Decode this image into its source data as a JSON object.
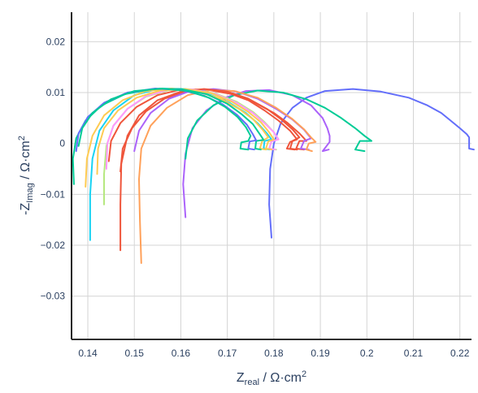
{
  "chart_data": {
    "type": "line",
    "title": "",
    "xlabel": {
      "base": "Z",
      "sub": "real",
      "unit": " / Ω·cm",
      "sup": "2"
    },
    "ylabel": {
      "base": "-Z",
      "sub": "Imag",
      "unit": " / Ω·cm",
      "sup": "2"
    },
    "xlim": [
      0.1365,
      0.2225
    ],
    "ylim": [
      -0.0385,
      0.0258
    ],
    "xticks": [
      0.14,
      0.15,
      0.16,
      0.17,
      0.18,
      0.19,
      0.2,
      0.21,
      0.22
    ],
    "xtick_labels": [
      "0.14",
      "0.15",
      "0.16",
      "0.17",
      "0.18",
      "0.19",
      "0.2",
      "0.21",
      "0.22"
    ],
    "yticks": [
      0.02,
      0.01,
      0,
      -0.01,
      -0.02,
      -0.03
    ],
    "ytick_labels": [
      "0.02",
      "0.01",
      "0",
      "−0.01",
      "−0.02",
      "−0.03"
    ],
    "grid": true,
    "legend": "none",
    "series": [
      {
        "color": "#636efa",
        "points": [
          [
            0.1795,
            -0.0185
          ],
          [
            0.179,
            -0.012
          ],
          [
            0.1792,
            -0.005
          ],
          [
            0.18,
            0.0
          ],
          [
            0.1815,
            0.004
          ],
          [
            0.184,
            0.007
          ],
          [
            0.187,
            0.009
          ],
          [
            0.191,
            0.0103
          ],
          [
            0.197,
            0.0107
          ],
          [
            0.203,
            0.0102
          ],
          [
            0.209,
            0.009
          ],
          [
            0.213,
            0.0075
          ],
          [
            0.216,
            0.006
          ],
          [
            0.218,
            0.0045
          ],
          [
            0.22,
            0.003
          ],
          [
            0.2215,
            0.0018
          ],
          [
            0.222,
            0.0012
          ],
          [
            0.222,
            -0.001
          ],
          [
            0.223,
            -0.0012
          ]
        ]
      },
      {
        "color": "#ab63fa",
        "points": [
          [
            0.161,
            -0.0145
          ],
          [
            0.1605,
            -0.008
          ],
          [
            0.161,
            -0.002
          ],
          [
            0.1625,
            0.003
          ],
          [
            0.1655,
            0.0065
          ],
          [
            0.1695,
            0.009
          ],
          [
            0.174,
            0.0103
          ],
          [
            0.179,
            0.0105
          ],
          [
            0.184,
            0.0095
          ],
          [
            0.188,
            0.0075
          ],
          [
            0.1905,
            0.005
          ],
          [
            0.1915,
            0.003
          ],
          [
            0.192,
            0.0015
          ],
          [
            0.192,
            0.0003
          ],
          [
            0.1905,
            -0.0015
          ],
          [
            0.1918,
            -0.0012
          ]
        ]
      },
      {
        "color": "#00cc96",
        "points": [
          [
            0.161,
            -0.003
          ],
          [
            0.1615,
            0.001
          ],
          [
            0.1635,
            0.0045
          ],
          [
            0.167,
            0.0075
          ],
          [
            0.1715,
            0.0095
          ],
          [
            0.1765,
            0.0104
          ],
          [
            0.182,
            0.01
          ],
          [
            0.187,
            0.0087
          ],
          [
            0.191,
            0.007
          ],
          [
            0.1945,
            0.005
          ],
          [
            0.1975,
            0.003
          ],
          [
            0.1995,
            0.0015
          ],
          [
            0.201,
            0.0005
          ],
          [
            0.1985,
            0.0005
          ],
          [
            0.1975,
            -0.0012
          ],
          [
            0.1995,
            -0.0015
          ]
        ]
      },
      {
        "color": "#ef553b",
        "points": [
          [
            0.147,
            -0.0055
          ],
          [
            0.1475,
            -0.001
          ],
          [
            0.1495,
            0.003
          ],
          [
            0.1525,
            0.0063
          ],
          [
            0.1565,
            0.0088
          ],
          [
            0.161,
            0.0102
          ],
          [
            0.1655,
            0.0106
          ],
          [
            0.17,
            0.01
          ],
          [
            0.1745,
            0.0085
          ],
          [
            0.178,
            0.0065
          ],
          [
            0.181,
            0.0045
          ],
          [
            0.1835,
            0.0025
          ],
          [
            0.185,
            0.0008
          ],
          [
            0.1835,
            0.0003
          ],
          [
            0.1828,
            -0.001
          ],
          [
            0.1845,
            -0.0012
          ]
        ]
      },
      {
        "color": "#ef553b",
        "points": [
          [
            0.1445,
            -0.0035
          ],
          [
            0.145,
            0.0005
          ],
          [
            0.147,
            0.004
          ],
          [
            0.1505,
            0.0072
          ],
          [
            0.155,
            0.0095
          ],
          [
            0.16,
            0.0106
          ],
          [
            0.1655,
            0.0106
          ],
          [
            0.171,
            0.0097
          ],
          [
            0.176,
            0.008
          ],
          [
            0.18,
            0.006
          ],
          [
            0.183,
            0.004
          ],
          [
            0.1855,
            0.002
          ],
          [
            0.187,
            0.0005
          ],
          [
            0.1855,
            0.0005
          ],
          [
            0.1848,
            -0.001
          ],
          [
            0.1865,
            -0.0012
          ]
        ]
      },
      {
        "color": "#ab63fa",
        "points": [
          [
            0.15,
            -0.0015
          ],
          [
            0.151,
            0.0025
          ],
          [
            0.1535,
            0.006
          ],
          [
            0.1575,
            0.0088
          ],
          [
            0.162,
            0.0103
          ],
          [
            0.167,
            0.0107
          ],
          [
            0.172,
            0.0102
          ],
          [
            0.1765,
            0.0088
          ],
          [
            0.1805,
            0.0068
          ],
          [
            0.184,
            0.0047
          ],
          [
            0.1865,
            0.0027
          ],
          [
            0.188,
            0.001
          ],
          [
            0.1865,
            0.0005
          ],
          [
            0.1858,
            -0.001
          ],
          [
            0.1875,
            -0.0012
          ]
        ]
      },
      {
        "color": "#ffa15a",
        "points": [
          [
            0.1515,
            -0.0235
          ],
          [
            0.1512,
            -0.015
          ],
          [
            0.151,
            -0.007
          ],
          [
            0.1515,
            -0.001
          ],
          [
            0.1535,
            0.0035
          ],
          [
            0.157,
            0.007
          ],
          [
            0.1615,
            0.0095
          ],
          [
            0.1665,
            0.0105
          ],
          [
            0.1715,
            0.0103
          ],
          [
            0.1765,
            0.009
          ],
          [
            0.1805,
            0.007
          ],
          [
            0.184,
            0.0048
          ],
          [
            0.1865,
            0.0028
          ],
          [
            0.188,
            0.0012
          ],
          [
            0.189,
            0.0003
          ],
          [
            0.1875,
            0.0
          ],
          [
            0.187,
            -0.0012
          ],
          [
            0.1882,
            -0.0015
          ]
        ]
      },
      {
        "color": "#ef553b",
        "points": [
          [
            0.147,
            -0.021
          ],
          [
            0.147,
            -0.012
          ],
          [
            0.1472,
            -0.004
          ],
          [
            0.1485,
            0.0015
          ],
          [
            0.151,
            0.0055
          ],
          [
            0.155,
            0.0085
          ],
          [
            0.16,
            0.0102
          ],
          [
            0.165,
            0.0107
          ],
          [
            0.17,
            0.0102
          ],
          [
            0.1745,
            0.0088
          ],
          [
            0.1785,
            0.0068
          ],
          [
            0.1815,
            0.0048
          ],
          [
            0.184,
            0.0028
          ],
          [
            0.1855,
            0.0012
          ],
          [
            0.184,
            0.0005
          ],
          [
            0.1835,
            -0.001
          ],
          [
            0.185,
            -0.0012
          ]
        ]
      },
      {
        "color": "#19d3f3",
        "points": [
          [
            0.1405,
            -0.019
          ],
          [
            0.1405,
            -0.01
          ],
          [
            0.141,
            -0.003
          ],
          [
            0.1425,
            0.0025
          ],
          [
            0.1455,
            0.0065
          ],
          [
            0.15,
            0.0095
          ],
          [
            0.1555,
            0.0108
          ],
          [
            0.161,
            0.0107
          ],
          [
            0.166,
            0.0097
          ],
          [
            0.1705,
            0.008
          ],
          [
            0.174,
            0.006
          ],
          [
            0.1765,
            0.004
          ],
          [
            0.1785,
            0.002
          ],
          [
            0.1795,
            0.0008
          ],
          [
            0.178,
            0.0005
          ],
          [
            0.1778,
            -0.001
          ],
          [
            0.179,
            -0.0012
          ]
        ]
      },
      {
        "color": "#b6e880",
        "points": [
          [
            0.1435,
            -0.012
          ],
          [
            0.1435,
            -0.006
          ],
          [
            0.144,
            -0.0005
          ],
          [
            0.1455,
            0.0035
          ],
          [
            0.1485,
            0.0068
          ],
          [
            0.1525,
            0.0092
          ],
          [
            0.1575,
            0.0105
          ],
          [
            0.1625,
            0.0106
          ],
          [
            0.1675,
            0.0098
          ],
          [
            0.172,
            0.0082
          ],
          [
            0.1755,
            0.0062
          ],
          [
            0.178,
            0.0042
          ],
          [
            0.18,
            0.0022
          ],
          [
            0.181,
            0.0008
          ],
          [
            0.1795,
            0.0005
          ],
          [
            0.179,
            -0.001
          ],
          [
            0.1805,
            -0.0012
          ]
        ]
      },
      {
        "color": "#ff97ff",
        "points": [
          [
            0.144,
            -0.005
          ],
          [
            0.1442,
            0.0
          ],
          [
            0.1455,
            0.0035
          ],
          [
            0.1485,
            0.0068
          ],
          [
            0.1525,
            0.0093
          ],
          [
            0.1575,
            0.0106
          ],
          [
            0.1625,
            0.0106
          ],
          [
            0.1675,
            0.0097
          ],
          [
            0.172,
            0.008
          ],
          [
            0.1755,
            0.006
          ],
          [
            0.178,
            0.004
          ],
          [
            0.18,
            0.0022
          ],
          [
            0.181,
            0.0008
          ],
          [
            0.1795,
            0.0004
          ],
          [
            0.179,
            -0.001
          ],
          [
            0.1803,
            -0.0012
          ]
        ]
      },
      {
        "color": "#fecb52",
        "points": [
          [
            0.1395,
            -0.0085
          ],
          [
            0.1398,
            -0.003
          ],
          [
            0.141,
            0.0015
          ],
          [
            0.1435,
            0.0055
          ],
          [
            0.1475,
            0.0085
          ],
          [
            0.1525,
            0.0103
          ],
          [
            0.158,
            0.0108
          ],
          [
            0.1635,
            0.0102
          ],
          [
            0.1685,
            0.0088
          ],
          [
            0.1725,
            0.0068
          ],
          [
            0.1755,
            0.0048
          ],
          [
            0.1775,
            0.0028
          ],
          [
            0.1788,
            0.0012
          ],
          [
            0.1775,
            0.0005
          ],
          [
            0.177,
            -0.001
          ],
          [
            0.1783,
            -0.0012
          ]
        ]
      },
      {
        "color": "#fecb52",
        "points": [
          [
            0.142,
            -0.006
          ],
          [
            0.1422,
            -0.001
          ],
          [
            0.1435,
            0.003
          ],
          [
            0.1465,
            0.0065
          ],
          [
            0.1505,
            0.009
          ],
          [
            0.1555,
            0.0104
          ],
          [
            0.161,
            0.0107
          ],
          [
            0.1665,
            0.0099
          ],
          [
            0.171,
            0.0082
          ],
          [
            0.1745,
            0.0062
          ],
          [
            0.1772,
            0.0042
          ],
          [
            0.179,
            0.0022
          ],
          [
            0.18,
            0.0008
          ],
          [
            0.1788,
            0.0004
          ],
          [
            0.1783,
            -0.001
          ],
          [
            0.1795,
            -0.0012
          ]
        ]
      },
      {
        "color": "#00cc96",
        "points": [
          [
            0.137,
            -0.008
          ],
          [
            0.1368,
            -0.003
          ],
          [
            0.1375,
            0.001
          ],
          [
            0.1395,
            0.0045
          ],
          [
            0.143,
            0.0075
          ],
          [
            0.148,
            0.0097
          ],
          [
            0.154,
            0.0107
          ],
          [
            0.16,
            0.0107
          ],
          [
            0.1655,
            0.0097
          ],
          [
            0.17,
            0.0078
          ],
          [
            0.173,
            0.0058
          ],
          [
            0.1755,
            0.0038
          ],
          [
            0.177,
            0.0018
          ],
          [
            0.1778,
            0.0007
          ],
          [
            0.1762,
            0.0005
          ],
          [
            0.176,
            -0.001
          ],
          [
            0.1772,
            -0.0012
          ]
        ]
      },
      {
        "color": "#636efa",
        "points": [
          [
            0.1375,
            -0.0015
          ],
          [
            0.138,
            0.002
          ],
          [
            0.14,
            0.0052
          ],
          [
            0.1435,
            0.008
          ],
          [
            0.1485,
            0.01
          ],
          [
            0.1545,
            0.0108
          ],
          [
            0.16,
            0.0105
          ],
          [
            0.165,
            0.0094
          ],
          [
            0.169,
            0.0077
          ],
          [
            0.172,
            0.0057
          ],
          [
            0.1742,
            0.0037
          ],
          [
            0.1755,
            0.0018
          ],
          [
            0.1762,
            0.0006
          ],
          [
            0.1748,
            0.0004
          ],
          [
            0.1745,
            -0.001
          ],
          [
            0.1758,
            -0.0012
          ]
        ]
      },
      {
        "color": "#00cc96",
        "points": [
          [
            0.138,
            -0.0005
          ],
          [
            0.1388,
            0.003
          ],
          [
            0.141,
            0.006
          ],
          [
            0.145,
            0.0087
          ],
          [
            0.15,
            0.0103
          ],
          [
            0.156,
            0.0108
          ],
          [
            0.1615,
            0.0103
          ],
          [
            0.166,
            0.009
          ],
          [
            0.1695,
            0.0072
          ],
          [
            0.1722,
            0.0052
          ],
          [
            0.174,
            0.0032
          ],
          [
            0.175,
            0.0015
          ],
          [
            0.1745,
            0.0005
          ],
          [
            0.173,
            0.0002
          ],
          [
            0.1728,
            -0.001
          ],
          [
            0.1745,
            -0.0012
          ]
        ]
      }
    ]
  }
}
